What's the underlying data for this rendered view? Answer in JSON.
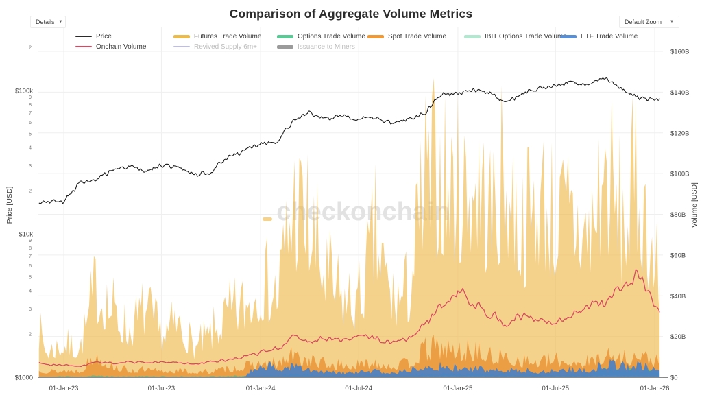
{
  "window": {
    "details_label": "Details",
    "default_zoom_label": "Default Zoom",
    "caret": "▼"
  },
  "title": "Comparison of Aggregate Volume Metrics",
  "watermark": {
    "text": "checkonchain",
    "text_color": "#e2e2e2",
    "dash_color": "#f6d388"
  },
  "legend": {
    "items": [
      {
        "label": "Price",
        "color": "#2a2a2a",
        "swatch": "thin",
        "muted": false
      },
      {
        "label": "Futures Trade Volume",
        "color": "#e9bb54",
        "swatch": "thick",
        "muted": false
      },
      {
        "label": "Options Trade Volume",
        "color": "#5ec795",
        "swatch": "thick",
        "muted": false
      },
      {
        "label": "Spot Trade Volume",
        "color": "#ec9a3e",
        "swatch": "thick",
        "muted": false
      },
      {
        "label": "IBIT Options Trade Volume",
        "color": "#b5e6d0",
        "swatch": "thick",
        "muted": false
      },
      {
        "label": "ETF Trade Volume",
        "color": "#5b8fd2",
        "swatch": "thick",
        "muted": false
      },
      {
        "label": "Onchain Volume",
        "color": "#d6495f",
        "swatch": "thin",
        "muted": false
      },
      {
        "label": "Revived Supply 6m+",
        "color": "#bdbde6",
        "swatch": "thin",
        "muted": true
      },
      {
        "label": "Issuance to Miners",
        "color": "#9b9b9b",
        "swatch": "thick",
        "muted": true
      }
    ]
  },
  "chart_data": {
    "type": "area",
    "title": "Comparison of Aggregate Volume Metrics",
    "grid": true,
    "legend_position": "top",
    "y_left": {
      "title": "Price [USD]",
      "scale": "log",
      "range_usd": [
        1000,
        280000
      ],
      "major_ticks": [
        {
          "label": "$100k",
          "value": 100000
        },
        {
          "label": "$10k",
          "value": 10000
        },
        {
          "label": "$1000",
          "value": 1000
        }
      ],
      "minor_ticks": [
        {
          "label": "2",
          "value": 200000
        },
        {
          "label": "9",
          "value": 90000
        },
        {
          "label": "8",
          "value": 80000
        },
        {
          "label": "7",
          "value": 70000
        },
        {
          "label": "6",
          "value": 60000
        },
        {
          "label": "5",
          "value": 50000
        },
        {
          "label": "4",
          "value": 40000
        },
        {
          "label": "3",
          "value": 30000
        },
        {
          "label": "2",
          "value": 20000
        },
        {
          "label": "9",
          "value": 9000
        },
        {
          "label": "8",
          "value": 8000
        },
        {
          "label": "7",
          "value": 7000
        },
        {
          "label": "6",
          "value": 6000
        },
        {
          "label": "5",
          "value": 5000
        },
        {
          "label": "4",
          "value": 4000
        },
        {
          "label": "3",
          "value": 3000
        },
        {
          "label": "2",
          "value": 2000
        }
      ]
    },
    "y_right": {
      "title": "Volume [USD]",
      "scale": "linear",
      "unit": "billion USD",
      "range_billions": [
        0,
        160
      ],
      "ticks": [
        {
          "label": "$0",
          "value": 0
        },
        {
          "label": "$20B",
          "value": 20
        },
        {
          "label": "$40B",
          "value": 40
        },
        {
          "label": "$60B",
          "value": 60
        },
        {
          "label": "$80B",
          "value": 80
        },
        {
          "label": "$100B",
          "value": 100
        },
        {
          "label": "$120B",
          "value": 120
        },
        {
          "label": "$140B",
          "value": 140
        },
        {
          "label": "$160B",
          "value": 160
        }
      ]
    },
    "x_ticks": [
      {
        "label": "01-Jan-23",
        "date": "2023-01-01"
      },
      {
        "label": "01-Jul-23",
        "date": "2023-07-01"
      },
      {
        "label": "01-Jan-24",
        "date": "2024-01-01"
      },
      {
        "label": "01-Jul-24",
        "date": "2024-07-01"
      },
      {
        "label": "01-Jan-25",
        "date": "2025-01-01"
      },
      {
        "label": "01-Jul-25",
        "date": "2025-07-01"
      },
      {
        "label": "01-Jan-26",
        "date": "2026-01-01"
      }
    ],
    "months": [
      "2022-11-16",
      "2022-12-01",
      "2023-01-01",
      "2023-02-01",
      "2023-03-01",
      "2023-04-01",
      "2023-05-01",
      "2023-06-01",
      "2023-07-01",
      "2023-08-01",
      "2023-09-01",
      "2023-10-01",
      "2023-11-01",
      "2023-12-01",
      "2024-01-01",
      "2024-02-01",
      "2024-03-01",
      "2024-04-01",
      "2024-05-01",
      "2024-06-01",
      "2024-07-01",
      "2024-08-01",
      "2024-09-01",
      "2024-10-01",
      "2024-11-01",
      "2024-12-01",
      "2025-01-01",
      "2025-02-01",
      "2025-03-01",
      "2025-04-01",
      "2025-05-01",
      "2025-06-01",
      "2025-07-01",
      "2025-08-01",
      "2025-09-01",
      "2025-10-01",
      "2025-11-01",
      "2025-12-01",
      "2026-01-01",
      "2026-01-10"
    ],
    "series": [
      {
        "name": "Price",
        "type": "line",
        "axis": "left",
        "unit": "USD",
        "color": "#1a1a1a",
        "values": [
          16600,
          17000,
          16600,
          23000,
          23300,
          28000,
          29200,
          27100,
          30400,
          29200,
          26000,
          27000,
          34500,
          37800,
          42600,
          43000,
          61000,
          70000,
          62000,
          68000,
          62500,
          64500,
          59000,
          63500,
          70000,
          96000,
          94000,
          102000,
          96000,
          83000,
          94500,
          104000,
          107000,
          116000,
          109000,
          122000,
          103000,
          88000,
          86000,
          87000
        ]
      },
      {
        "name": "Futures Trade Volume",
        "type": "area",
        "axis": "right",
        "unit": "billion USD",
        "color": "#efb645",
        "opacity": 0.62,
        "values": [
          28,
          16,
          20,
          18,
          55,
          42,
          28,
          42,
          26,
          33,
          18,
          26,
          38,
          44,
          58,
          52,
          108,
          92,
          62,
          48,
          46,
          85,
          48,
          52,
          118,
          122,
          112,
          125,
          98,
          122,
          88,
          112,
          95,
          100,
          88,
          128,
          92,
          118,
          70,
          58
        ]
      },
      {
        "name": "Spot Trade Volume",
        "type": "area",
        "axis": "right",
        "unit": "billion USD",
        "color": "#ea9132",
        "opacity": 0.8,
        "values": [
          5,
          3.5,
          4,
          4,
          13,
          7,
          4,
          4.5,
          3.5,
          4,
          3,
          3.5,
          5,
          6,
          8,
          8,
          13,
          10,
          8,
          7,
          7,
          9,
          7,
          8,
          16,
          18,
          15,
          16,
          12,
          12,
          10,
          9,
          10,
          10,
          9,
          14,
          11,
          13,
          10,
          9
        ]
      },
      {
        "name": "Options Trade Volume",
        "type": "area",
        "axis": "right",
        "unit": "billion USD",
        "color": "#4fbd8d",
        "opacity": 0.85,
        "values": [
          0.5,
          0.4,
          0.5,
          0.5,
          0.9,
          0.6,
          0.5,
          0.6,
          0.5,
          0.5,
          0.4,
          0.5,
          0.7,
          0.8,
          1.0,
          1.0,
          1.5,
          1.2,
          1.0,
          0.9,
          0.9,
          1.2,
          0.9,
          1.1,
          1.8,
          2.0,
          1.8,
          1.8,
          1.5,
          1.6,
          1.4,
          1.3,
          1.5,
          1.6,
          1.5,
          4.5,
          3.8,
          4.2,
          3.5,
          3.0
        ]
      },
      {
        "name": "IBIT Options Trade Volume",
        "type": "area",
        "axis": "right",
        "unit": "billion USD",
        "color": "#a9e2c8",
        "opacity": 0.85,
        "values": [
          0,
          0,
          0,
          0,
          0,
          0,
          0,
          0,
          0,
          0,
          0,
          0,
          0,
          0,
          0,
          0,
          0,
          0,
          0,
          0,
          0,
          0,
          0,
          0,
          0.5,
          0.8,
          0.8,
          0.7,
          0.6,
          0.7,
          0.6,
          0.6,
          0.7,
          0.7,
          0.7,
          1.0,
          0.9,
          0.9,
          0.7,
          0.7
        ]
      },
      {
        "name": "ETF Trade Volume",
        "type": "area",
        "axis": "right",
        "unit": "billion USD",
        "color": "#4a80c4",
        "opacity": 0.92,
        "values": [
          0,
          0,
          0,
          0,
          0,
          0,
          0,
          0,
          0,
          0,
          0,
          0,
          0,
          0.2,
          8,
          5,
          7,
          4,
          3,
          2.5,
          3,
          4,
          2.5,
          4,
          8,
          6,
          5.5,
          5,
          4,
          5,
          4,
          3.5,
          4,
          5,
          4,
          8,
          7,
          6.5,
          5,
          4.5
        ]
      },
      {
        "name": "Onchain Volume",
        "type": "line",
        "axis": "right",
        "unit": "billion USD",
        "color": "#d6495f",
        "values": [
          7,
          6,
          6,
          5.5,
          7.5,
          7,
          7.5,
          7,
          7.5,
          7,
          6.5,
          7.5,
          8.5,
          10,
          12,
          14,
          20,
          18,
          19,
          18,
          20,
          19,
          17,
          19,
          26,
          34,
          42,
          36,
          32,
          26,
          30,
          28,
          26,
          31,
          36,
          35,
          44,
          52,
          34,
          30
        ]
      },
      {
        "name": "Revived Supply 6m+",
        "type": "line",
        "axis": "right",
        "color": "#bdbde6",
        "hidden": true,
        "values": []
      },
      {
        "name": "Issuance to Miners",
        "type": "line",
        "axis": "right",
        "color": "#9b9b9b",
        "hidden": true,
        "values": []
      }
    ]
  }
}
